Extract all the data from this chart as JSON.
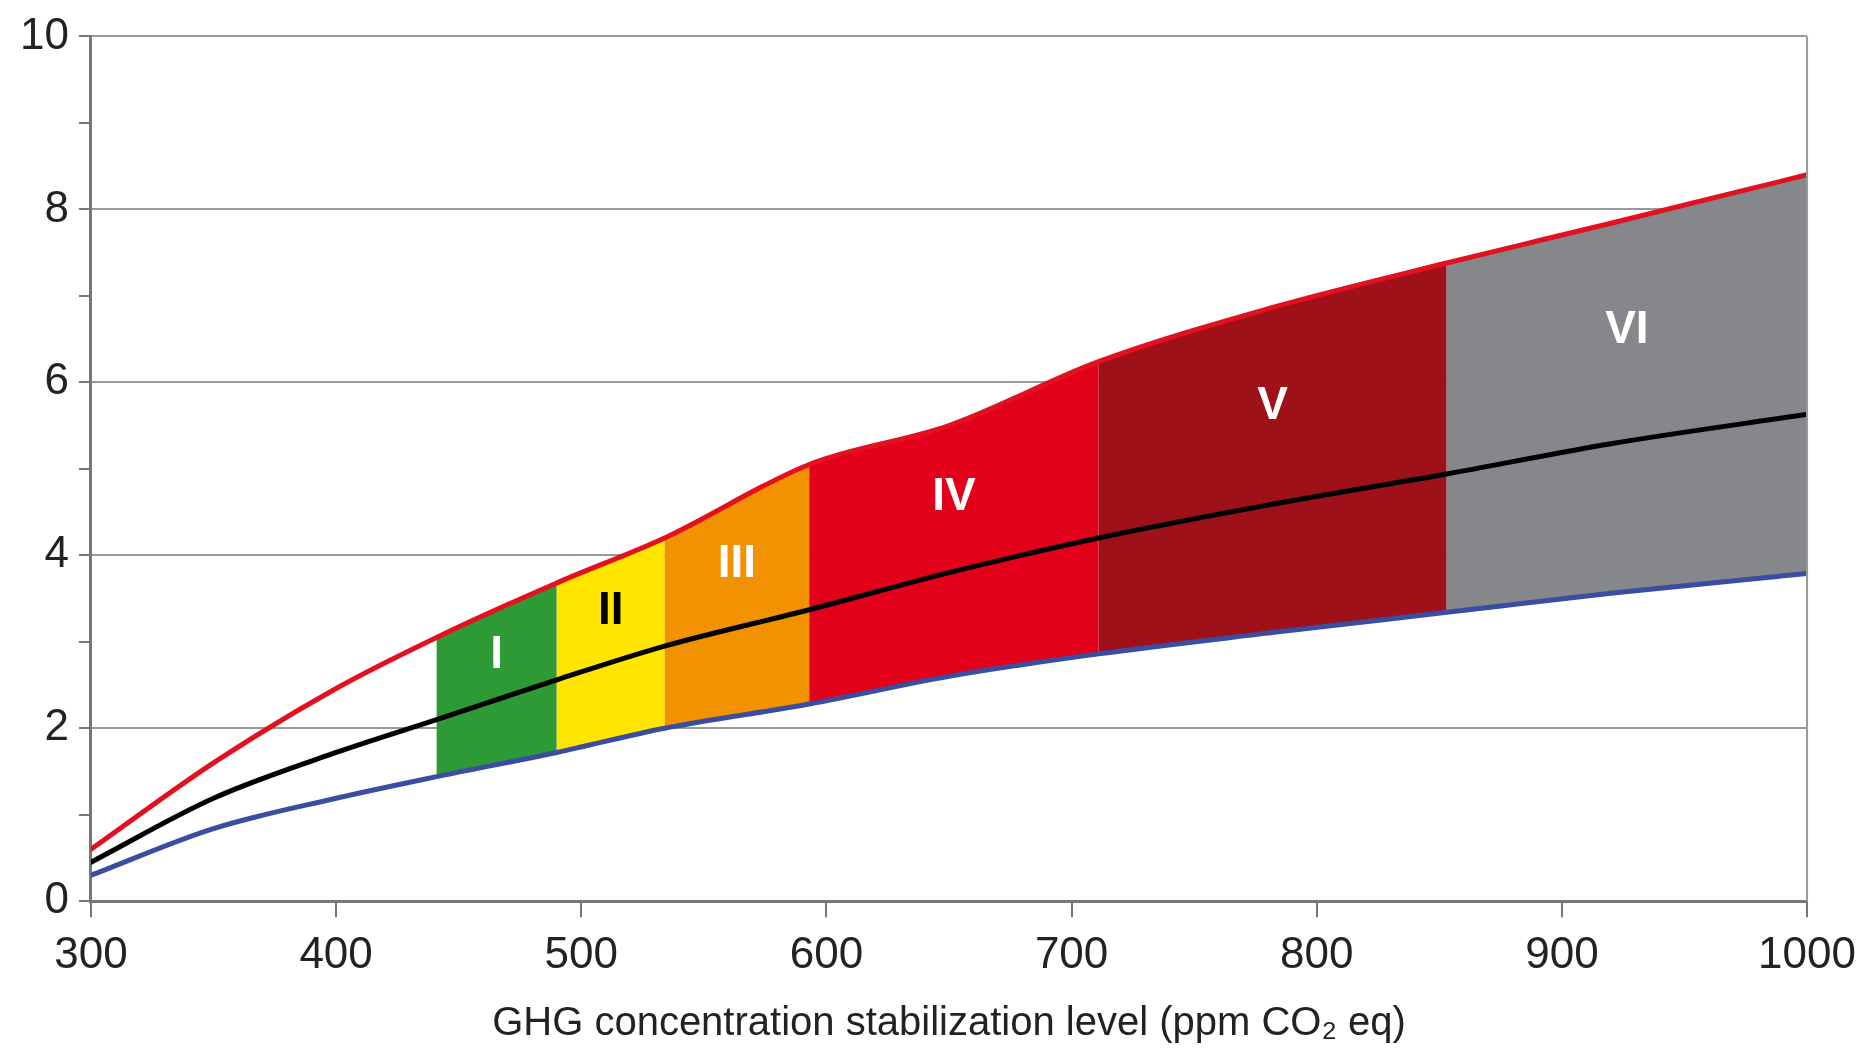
{
  "chart_data": {
    "type": "line",
    "xlabel": "GHG concentration stabilization level (ppm CO₂ eq)",
    "x": [
      300,
      350,
      400,
      441,
      490,
      534,
      593,
      650,
      711,
      780,
      853,
      920,
      1000
    ],
    "series": [
      {
        "color": "#e3101f",
        "values": [
          0.6,
          1.6,
          2.46,
          3.05,
          3.68,
          4.2,
          5.05,
          5.5,
          6.24,
          6.85,
          7.38,
          7.84,
          8.4
        ]
      },
      {
        "color": "#3a4da0",
        "values": [
          0.3,
          0.84,
          1.19,
          1.44,
          1.72,
          2.0,
          2.28,
          2.6,
          2.86,
          3.1,
          3.34,
          3.56,
          3.79
        ]
      },
      {
        "color": "#000000",
        "values": [
          0.45,
          1.19,
          1.72,
          2.1,
          2.56,
          2.95,
          3.37,
          3.8,
          4.2,
          4.58,
          4.94,
          5.29,
          5.63
        ]
      }
    ],
    "bands": [
      {
        "axis": "x",
        "from": 441,
        "to": 490,
        "label": "I",
        "color": "#2e9a36"
      },
      {
        "axis": "x",
        "from": 490,
        "to": 534,
        "label": "II",
        "color": "#ffe500"
      },
      {
        "axis": "x",
        "from": 534,
        "to": 593,
        "label": "III",
        "color": "#f39200"
      },
      {
        "axis": "x",
        "from": 593,
        "to": 711,
        "label": "IV",
        "color": "#e2001a"
      },
      {
        "axis": "x",
        "from": 711,
        "to": 853,
        "label": "V",
        "color": "#9e1119"
      },
      {
        "axis": "x",
        "from": 853,
        "to": 1000,
        "label": "VI",
        "color": "#85878a"
      }
    ],
    "xlim": [
      300,
      1000
    ],
    "xticks": [
      300,
      400,
      500,
      600,
      700,
      800,
      900,
      1000
    ],
    "ylim": [
      0,
      10
    ],
    "yticks": [
      0,
      {
        "value": 1,
        "label": null
      },
      2,
      {
        "value": 3,
        "label": null
      },
      4,
      {
        "value": 5,
        "label": null
      },
      6,
      {
        "value": 7,
        "label": null
      },
      8,
      {
        "value": 9,
        "label": null
      },
      10
    ],
    "grid": "y",
    "legend": false,
    "marker": "none",
    "line_style": "solid"
  }
}
